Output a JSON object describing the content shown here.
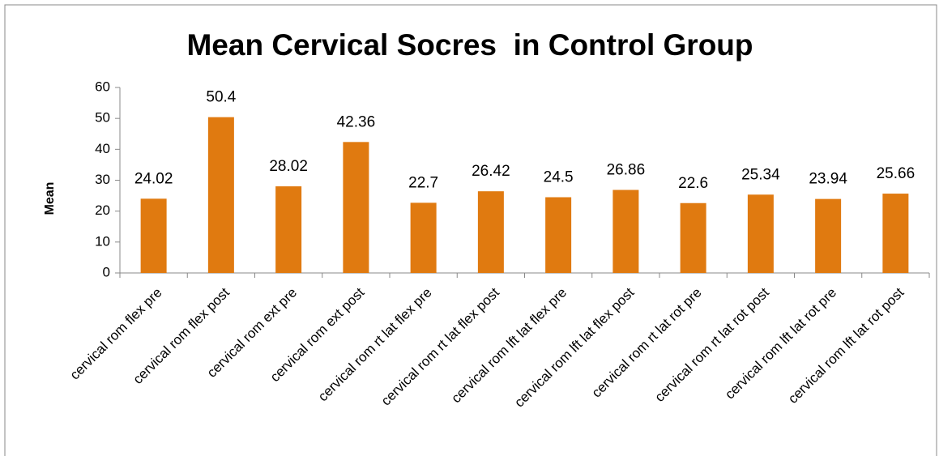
{
  "chart_data": {
    "type": "bar",
    "title": "Mean Cervical Socres  in Control Group",
    "y_label": "Mean",
    "categories": [
      "cervical rom flex pre",
      "cervical rom flex post",
      "cervical rom ext pre",
      "cervical rom ext post",
      "cervical rom rt lat flex pre",
      "cervical rom rt lat flex post",
      "cervical rom lft lat flex pre",
      "cervical rom lft lat flex post",
      "cervical rom rt lat rot pre",
      "cervical rom rt lat rot post",
      "cervical rom lft lat rot pre",
      "cervical rom lft lat rot post"
    ],
    "values": [
      24.02,
      50.4,
      28.02,
      42.36,
      22.7,
      26.42,
      24.5,
      26.86,
      22.6,
      25.34,
      23.94,
      25.66
    ],
    "color": "#e07a10",
    "ylim": [
      0,
      60
    ],
    "yticks": [
      0,
      10,
      20,
      30,
      40,
      50,
      60
    ],
    "grid": false
  }
}
